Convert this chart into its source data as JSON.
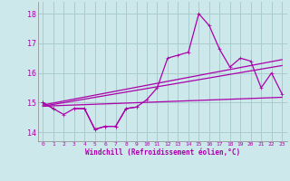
{
  "xlabel": "Windchill (Refroidissement éolien,°C)",
  "bg_color": "#cce8ea",
  "grid_color": "#aacccc",
  "line_color": "#aa00aa",
  "xlim": [
    -0.5,
    23.5
  ],
  "ylim": [
    13.7,
    18.4
  ],
  "yticks": [
    14,
    15,
    16,
    17,
    18
  ],
  "xticks": [
    0,
    1,
    2,
    3,
    4,
    5,
    6,
    7,
    8,
    9,
    10,
    11,
    12,
    13,
    14,
    15,
    16,
    17,
    18,
    19,
    20,
    21,
    22,
    23
  ],
  "line_jagged": [
    15.0,
    14.8,
    14.6,
    14.8,
    14.8,
    14.1,
    14.2,
    14.2,
    14.8,
    14.85,
    15.1,
    15.5,
    16.5,
    16.6,
    16.7,
    18.0,
    17.6,
    16.8,
    16.2,
    16.5,
    16.4,
    15.5,
    16.0,
    15.3
  ],
  "line_lower": [
    15.0,
    14.8,
    null,
    14.8,
    14.8,
    14.1,
    14.2,
    14.2,
    14.8,
    14.85,
    null,
    null,
    null,
    null,
    null,
    null,
    null,
    null,
    null,
    null,
    null,
    null,
    null,
    null
  ],
  "trend1_x": [
    0,
    23
  ],
  "trend1_y": [
    14.92,
    16.45
  ],
  "trend2_x": [
    0,
    23
  ],
  "trend2_y": [
    14.88,
    16.25
  ],
  "trend3_x": [
    0,
    23
  ],
  "trend3_y": [
    14.88,
    15.18
  ]
}
